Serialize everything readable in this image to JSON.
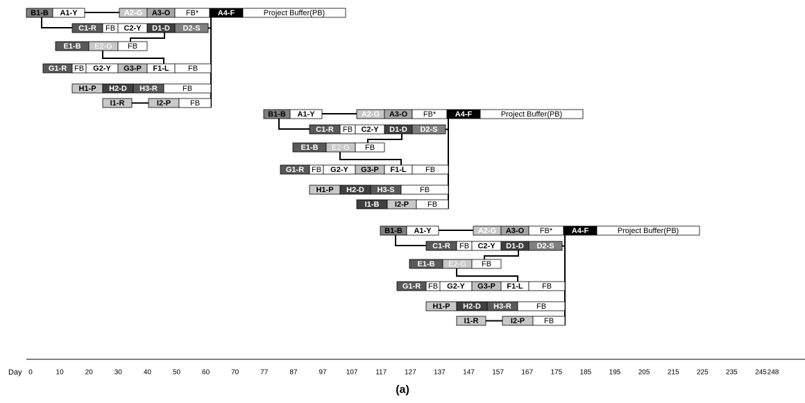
{
  "schedules": [
    {
      "rows": [
        [
          "B1-B",
          "A1-Y",
          "A2-G",
          "A3-O",
          "FB*",
          "A4-F",
          "Project Buffer(PB)"
        ],
        [
          "C1-R",
          "FB",
          "C2-Y",
          "D1-D",
          "D2-S"
        ],
        [
          "E1-B",
          "E2-G",
          "FB"
        ],
        [
          "G1-R",
          "FB",
          "G2-Y",
          "G3-P",
          "F1-L",
          "FB"
        ],
        [
          "H1-P",
          "H2-D",
          "H3-R",
          "FB"
        ],
        [
          "I1-R",
          "I2-P",
          "FB"
        ]
      ]
    },
    {
      "rows": [
        [
          "B1-B",
          "A1-Y",
          "A2-G",
          "A3-O",
          "FB*",
          "A4-F",
          "Project Buffer(PB)"
        ],
        [
          "C1-R",
          "FB",
          "C2-Y",
          "D1-D",
          "D2-S"
        ],
        [
          "E1-B",
          "E2-G",
          "FB"
        ],
        [
          "G1-R",
          "FB",
          "G2-Y",
          "G3-P",
          "F1-L",
          "FB"
        ],
        [
          "H1-P",
          "H2-D",
          "H3-S",
          "FB"
        ],
        [
          "I1-B",
          "I2-P",
          "FB"
        ]
      ]
    },
    {
      "rows": [
        [
          "B1-B",
          "A1-Y",
          "A2-G",
          "A3-O",
          "FB*",
          "A4-F",
          "Project Buffer(PB)"
        ],
        [
          "C1-R",
          "FB",
          "C2-Y",
          "D1-D",
          "D2-S"
        ],
        [
          "E1-B",
          "E2-G",
          "FB"
        ],
        [
          "G1-R",
          "FB",
          "G2-Y",
          "G3-P",
          "F1-L",
          "FB"
        ],
        [
          "H1-P",
          "H2-D",
          "H3-R",
          "FB"
        ],
        [
          "I1-R",
          "I2-P",
          "FB"
        ]
      ]
    }
  ],
  "axis": {
    "label": "Day",
    "ticks": [
      "0",
      "10",
      "20",
      "30",
      "40",
      "50",
      "60",
      "70",
      "77",
      "87",
      "97",
      "107",
      "117",
      "127",
      "137",
      "147",
      "157",
      "167",
      "175",
      "185",
      "195",
      "205",
      "215",
      "225",
      "235",
      "245",
      "248"
    ]
  },
  "caption": "(a)"
}
